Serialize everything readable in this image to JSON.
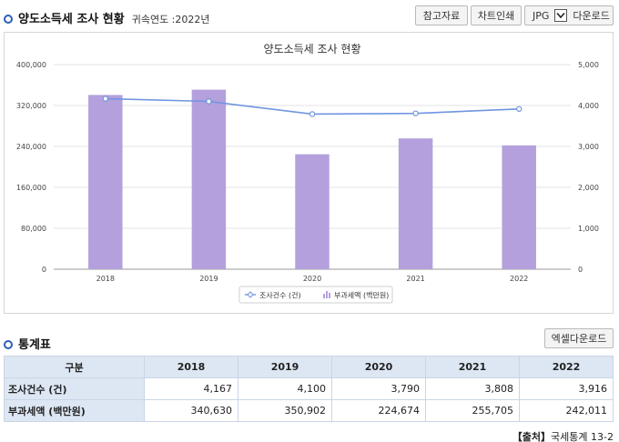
{
  "header": {
    "title": "양도소득세 조사 현황",
    "year_label": "귀속연도 :2022년"
  },
  "toolbar": {
    "ref_label": "참고자료",
    "print_label": "차트인쇄",
    "format_value": "JPG",
    "download_label": "다운로드"
  },
  "stats_section": {
    "title": "통계표",
    "excel_label": "엑셀다운로드"
  },
  "table": {
    "corner": "구분",
    "columns": [
      "2018",
      "2019",
      "2020",
      "2021",
      "2022"
    ],
    "rows": [
      {
        "label": "조사건수 (건)",
        "cells": [
          "4,167",
          "4,100",
          "3,790",
          "3,808",
          "3,916"
        ]
      },
      {
        "label": "부과세액 (백만원)",
        "cells": [
          "340,630",
          "350,902",
          "224,674",
          "255,705",
          "242,011"
        ]
      }
    ]
  },
  "source": {
    "prefix": "【출처】",
    "text": "국세통계 13-2"
  },
  "colors": {
    "bar": "#b4a0dc",
    "line": "#7095e0",
    "accent": "#2b5fb8",
    "header_bg": "#dde7f4"
  },
  "chart_data": {
    "type": "bar",
    "title": "양도소득세 조사 현황",
    "categories": [
      "2018",
      "2019",
      "2020",
      "2021",
      "2022"
    ],
    "series": [
      {
        "name": "부과세액 (백만원)",
        "type": "bar",
        "axis": "left",
        "values": [
          340630,
          350902,
          224674,
          255705,
          242011
        ]
      },
      {
        "name": "조사건수 (건)",
        "type": "line",
        "axis": "right",
        "values": [
          4167,
          4100,
          3790,
          3808,
          3916
        ]
      }
    ],
    "y_left": {
      "min": 0,
      "max": 400000,
      "ticks": [
        "0",
        "80,000",
        "160,000",
        "240,000",
        "320,000",
        "400,000"
      ]
    },
    "y_right": {
      "min": 0,
      "max": 5000,
      "ticks": [
        "0",
        "1,000",
        "2,000",
        "3,000",
        "4,000",
        "5,000"
      ]
    },
    "grid": true,
    "legend_position": "bottom"
  }
}
